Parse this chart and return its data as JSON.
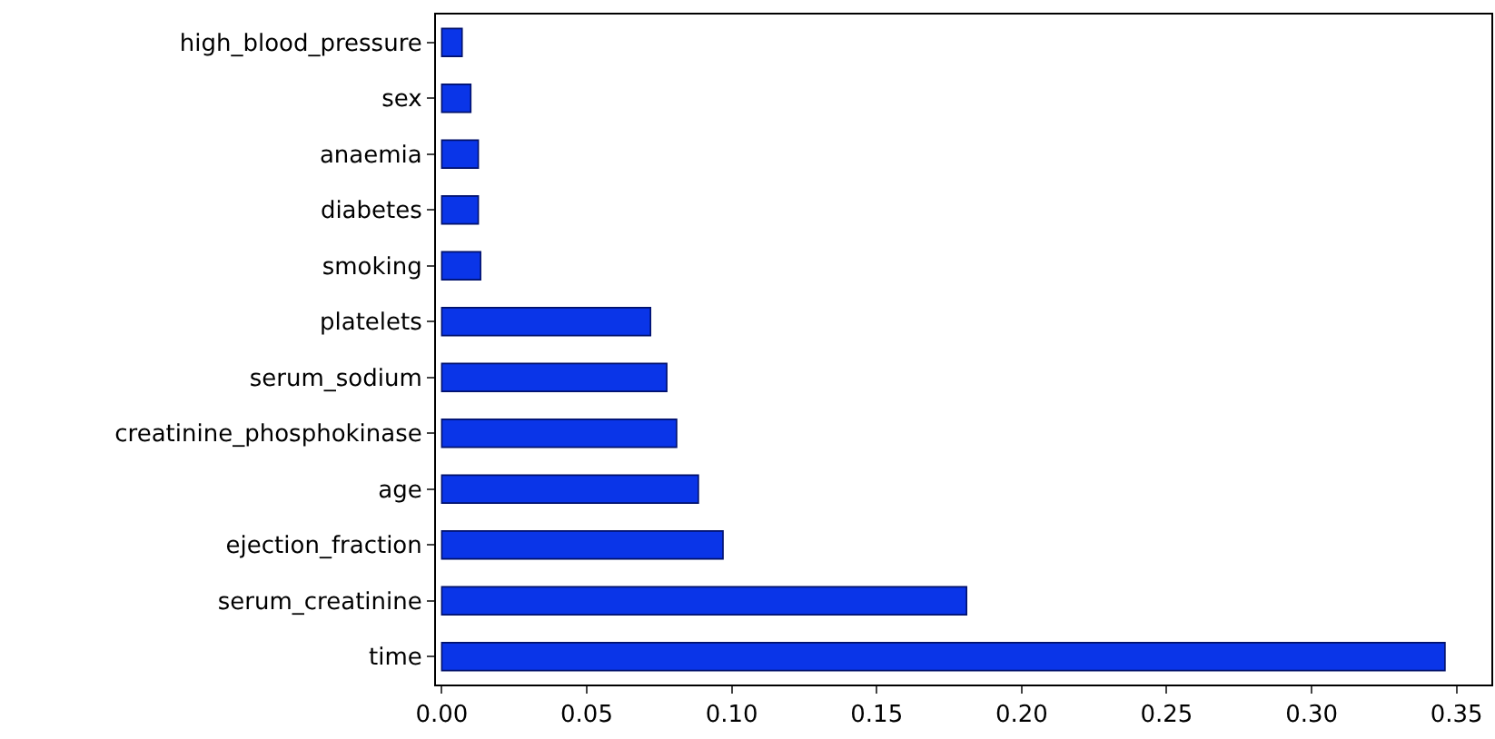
{
  "chart_data": {
    "type": "bar",
    "orientation": "horizontal",
    "categories": [
      "high_blood_pressure",
      "sex",
      "anaemia",
      "diabetes",
      "smoking",
      "platelets",
      "serum_sodium",
      "creatinine_phosphokinase",
      "age",
      "ejection_fraction",
      "serum_creatinine",
      "time"
    ],
    "values": [
      0.007,
      0.01,
      0.0126,
      0.0126,
      0.0134,
      0.072,
      0.0776,
      0.081,
      0.0885,
      0.097,
      0.181,
      0.346
    ],
    "color": "#0a35e8",
    "xlim": [
      -0.002,
      0.362
    ],
    "xticks": [
      {
        "value": 0,
        "label": "0.00"
      },
      {
        "value": 0.05,
        "label": "0.05"
      },
      {
        "value": 0.1,
        "label": "0.10"
      },
      {
        "value": 0.15,
        "label": "0.15"
      },
      {
        "value": 0.2,
        "label": "0.20"
      },
      {
        "value": 0.25,
        "label": "0.25"
      },
      {
        "value": 0.3,
        "label": "0.30"
      },
      {
        "value": 0.35,
        "label": "0.35"
      }
    ],
    "grid": false
  }
}
